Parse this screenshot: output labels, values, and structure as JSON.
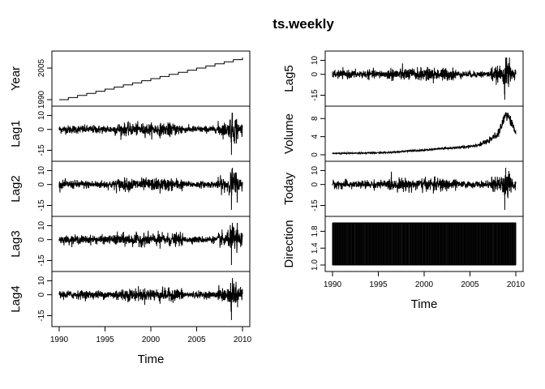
{
  "chart_data": {
    "type": "line",
    "title": "ts.weekly",
    "xlabel": "Time",
    "xlim": [
      1990,
      2010
    ],
    "x_ticks": [
      1990,
      1995,
      2000,
      2005,
      2010
    ],
    "grid": false,
    "legend": "none",
    "panels": [
      {
        "name": "Year",
        "column": 1,
        "ylim": [
          1990,
          2010
        ],
        "y_ticks": [
          1990,
          2005
        ],
        "tick_labels": [
          "1990",
          "2005"
        ],
        "kind": "step",
        "values": [
          [
            1990,
            1990
          ],
          [
            1991,
            1991
          ],
          [
            1992,
            1992
          ],
          [
            1993,
            1993
          ],
          [
            1994,
            1994
          ],
          [
            1995,
            1995
          ],
          [
            1996,
            1996
          ],
          [
            1997,
            1997
          ],
          [
            1998,
            1998
          ],
          [
            1999,
            1999
          ],
          [
            2000,
            2000
          ],
          [
            2001,
            2001
          ],
          [
            2002,
            2002
          ],
          [
            2003,
            2003
          ],
          [
            2004,
            2004
          ],
          [
            2005,
            2005
          ],
          [
            2006,
            2006
          ],
          [
            2007,
            2007
          ],
          [
            2008,
            2008
          ],
          [
            2009,
            2009
          ],
          [
            2010,
            2010
          ]
        ]
      },
      {
        "name": "Lag1",
        "column": 1,
        "ylim": [
          -18.2,
          12.0
        ],
        "y_ticks": [
          10,
          0,
          -15
        ],
        "tick_labels": [
          "10",
          "0",
          "-15"
        ],
        "kind": "return",
        "values": [
          [
            1990,
            0.5
          ],
          [
            1992,
            0.8
          ],
          [
            1994,
            -1.2
          ],
          [
            1996,
            1.5
          ],
          [
            1998,
            -2.8
          ],
          [
            2000,
            3.2
          ],
          [
            2001,
            -6.5
          ],
          [
            2002,
            -4.5
          ],
          [
            2004,
            1.2
          ],
          [
            2006,
            -1.0
          ],
          [
            2008,
            -4.0
          ],
          [
            2008.8,
            -18.2
          ],
          [
            2008.9,
            12.0
          ],
          [
            2009.3,
            7.0
          ],
          [
            2010,
            2.0
          ]
        ]
      },
      {
        "name": "Lag2",
        "column": 1,
        "ylim": [
          -18.2,
          12.0
        ],
        "y_ticks": [
          10,
          0,
          -15
        ],
        "tick_labels": [
          "10",
          "0",
          "-15"
        ],
        "kind": "return",
        "values": [
          [
            1990,
            0.5
          ],
          [
            1992,
            0.8
          ],
          [
            1994,
            -1.2
          ],
          [
            1996,
            1.5
          ],
          [
            1998,
            -2.8
          ],
          [
            2000,
            3.2
          ],
          [
            2001,
            -6.5
          ],
          [
            2002,
            -4.5
          ],
          [
            2004,
            1.2
          ],
          [
            2006,
            -1.0
          ],
          [
            2008,
            -4.0
          ],
          [
            2008.8,
            -18.2
          ],
          [
            2008.9,
            12.0
          ],
          [
            2009.3,
            7.0
          ],
          [
            2010,
            2.0
          ]
        ]
      },
      {
        "name": "Lag3",
        "column": 1,
        "ylim": [
          -18.2,
          12.0
        ],
        "y_ticks": [
          10,
          0,
          -15
        ],
        "tick_labels": [
          "10",
          "0",
          "-15"
        ],
        "kind": "return",
        "values": [
          [
            1990,
            0.5
          ],
          [
            1992,
            0.8
          ],
          [
            1994,
            -1.2
          ],
          [
            1996,
            1.5
          ],
          [
            1998,
            -2.8
          ],
          [
            2000,
            3.2
          ],
          [
            2001,
            -6.5
          ],
          [
            2002,
            -4.5
          ],
          [
            2004,
            1.2
          ],
          [
            2006,
            -1.0
          ],
          [
            2008,
            -4.0
          ],
          [
            2008.8,
            -18.2
          ],
          [
            2008.9,
            12.0
          ],
          [
            2009.3,
            7.0
          ],
          [
            2010,
            2.0
          ]
        ]
      },
      {
        "name": "Lag4",
        "column": 1,
        "ylim": [
          -18.2,
          12.0
        ],
        "y_ticks": [
          10,
          0,
          -15
        ],
        "tick_labels": [
          "10",
          "0",
          "-15"
        ],
        "kind": "return",
        "values": [
          [
            1990,
            0.5
          ],
          [
            1992,
            0.8
          ],
          [
            1994,
            -1.2
          ],
          [
            1996,
            1.5
          ],
          [
            1998,
            -2.8
          ],
          [
            2000,
            3.2
          ],
          [
            2001,
            -6.5
          ],
          [
            2002,
            -4.5
          ],
          [
            2004,
            1.2
          ],
          [
            2006,
            -1.0
          ],
          [
            2008,
            -4.0
          ],
          [
            2008.8,
            -18.2
          ],
          [
            2008.9,
            12.0
          ],
          [
            2009.3,
            7.0
          ],
          [
            2010,
            2.0
          ]
        ]
      },
      {
        "name": "Lag5",
        "column": 2,
        "ylim": [
          -18.2,
          12.0
        ],
        "y_ticks": [
          10,
          0,
          -15
        ],
        "tick_labels": [
          "10",
          "0",
          "-15"
        ],
        "kind": "return",
        "values": [
          [
            1990,
            0.5
          ],
          [
            1992,
            0.8
          ],
          [
            1994,
            -1.2
          ],
          [
            1996,
            1.5
          ],
          [
            1998,
            -2.8
          ],
          [
            2000,
            3.2
          ],
          [
            2001,
            -6.5
          ],
          [
            2002,
            -4.5
          ],
          [
            2004,
            1.2
          ],
          [
            2006,
            -1.0
          ],
          [
            2008,
            -4.0
          ],
          [
            2008.8,
            -18.2
          ],
          [
            2008.9,
            12.0
          ],
          [
            2009.3,
            7.0
          ],
          [
            2010,
            2.0
          ]
        ]
      },
      {
        "name": "Volume",
        "column": 2,
        "ylim": [
          0,
          9.3
        ],
        "y_ticks": [
          0,
          4,
          8
        ],
        "tick_labels": [
          "0",
          "4",
          "8"
        ],
        "kind": "trend",
        "values": [
          [
            1990,
            0.3
          ],
          [
            1992,
            0.35
          ],
          [
            1994,
            0.4
          ],
          [
            1996,
            0.5
          ],
          [
            1998,
            0.8
          ],
          [
            2000,
            1.0
          ],
          [
            2002,
            1.4
          ],
          [
            2004,
            1.6
          ],
          [
            2006,
            2.2
          ],
          [
            2007,
            3.0
          ],
          [
            2008,
            4.5
          ],
          [
            2008.5,
            6.5
          ],
          [
            2008.9,
            9.3
          ],
          [
            2009.3,
            8.0
          ],
          [
            2010,
            5.0
          ]
        ]
      },
      {
        "name": "Today",
        "column": 2,
        "ylim": [
          -18.2,
          12.0
        ],
        "y_ticks": [
          10,
          0,
          -15
        ],
        "tick_labels": [
          "10",
          "0",
          "-15"
        ],
        "kind": "return",
        "values": [
          [
            1990,
            0.5
          ],
          [
            1992,
            0.8
          ],
          [
            1994,
            -1.2
          ],
          [
            1996,
            1.5
          ],
          [
            1998,
            -2.8
          ],
          [
            2000,
            3.2
          ],
          [
            2001,
            -6.5
          ],
          [
            2002,
            -4.5
          ],
          [
            2004,
            1.2
          ],
          [
            2006,
            -1.0
          ],
          [
            2008,
            -4.0
          ],
          [
            2008.8,
            -18.2
          ],
          [
            2008.9,
            12.0
          ],
          [
            2009.3,
            7.0
          ],
          [
            2010,
            2.0
          ]
        ]
      },
      {
        "name": "Direction",
        "column": 2,
        "ylim": [
          1,
          2
        ],
        "y_ticks": [
          1.0,
          1.4,
          1.8
        ],
        "tick_labels": [
          "1.0",
          "1.4",
          "1.8"
        ],
        "kind": "binary",
        "values": [
          [
            1990,
            2
          ],
          [
            1995,
            1
          ],
          [
            2000,
            2
          ],
          [
            2005,
            1
          ],
          [
            2010,
            2
          ]
        ]
      }
    ]
  }
}
